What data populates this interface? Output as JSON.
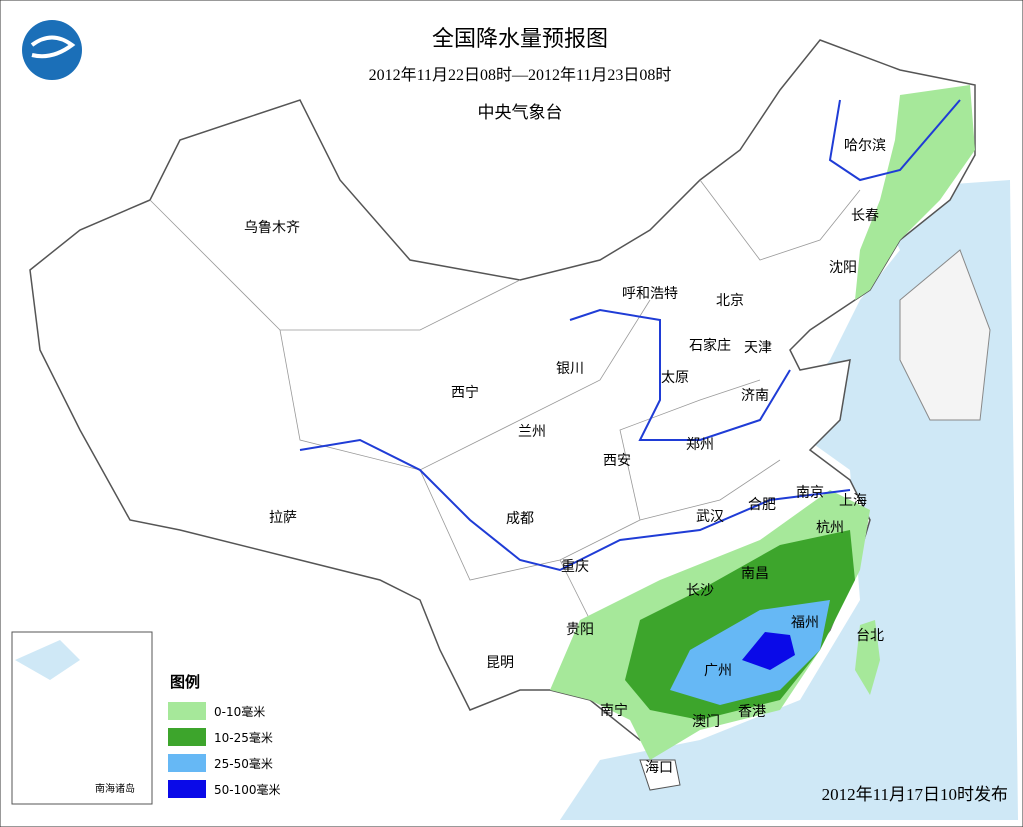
{
  "header": {
    "title": "全国降水量预报图",
    "period": "2012年11月22日08时—2012年11月23日08时",
    "issuer": "中央气象台"
  },
  "cities": [
    {
      "label": "哈尔滨"
    },
    {
      "label": "长春"
    },
    {
      "label": "沈阳"
    },
    {
      "label": "乌鲁木齐"
    },
    {
      "label": "呼和浩特"
    },
    {
      "label": "北京"
    },
    {
      "label": "石家庄"
    },
    {
      "label": "天津"
    },
    {
      "label": "银川"
    },
    {
      "label": "太原"
    },
    {
      "label": "西宁"
    },
    {
      "label": "济南"
    },
    {
      "label": "兰州"
    },
    {
      "label": "郑州"
    },
    {
      "label": "西安"
    },
    {
      "label": "南京"
    },
    {
      "label": "上海"
    },
    {
      "label": "合肥"
    },
    {
      "label": "拉萨"
    },
    {
      "label": "成都"
    },
    {
      "label": "武汉"
    },
    {
      "label": "杭州"
    },
    {
      "label": "重庆"
    },
    {
      "label": "南昌"
    },
    {
      "label": "长沙"
    },
    {
      "label": "福州"
    },
    {
      "label": "贵阳"
    },
    {
      "label": "台北"
    },
    {
      "label": "昆明"
    },
    {
      "label": "广州"
    },
    {
      "label": "南宁"
    },
    {
      "label": "澳门"
    },
    {
      "label": "香港"
    },
    {
      "label": "海口"
    }
  ],
  "legend": {
    "title": "图例",
    "items": [
      {
        "label": "0-10毫米",
        "color": "#a6e89a"
      },
      {
        "label": "10-25毫米",
        "color": "#3da52c"
      },
      {
        "label": "25-50毫米",
        "color": "#66b8f5"
      },
      {
        "label": "50-100毫米",
        "color": "#0a0ae8"
      }
    ]
  },
  "inset": {
    "label": "南海诸岛"
  },
  "footer": {
    "issued": "2012年11月17日10时发布"
  }
}
